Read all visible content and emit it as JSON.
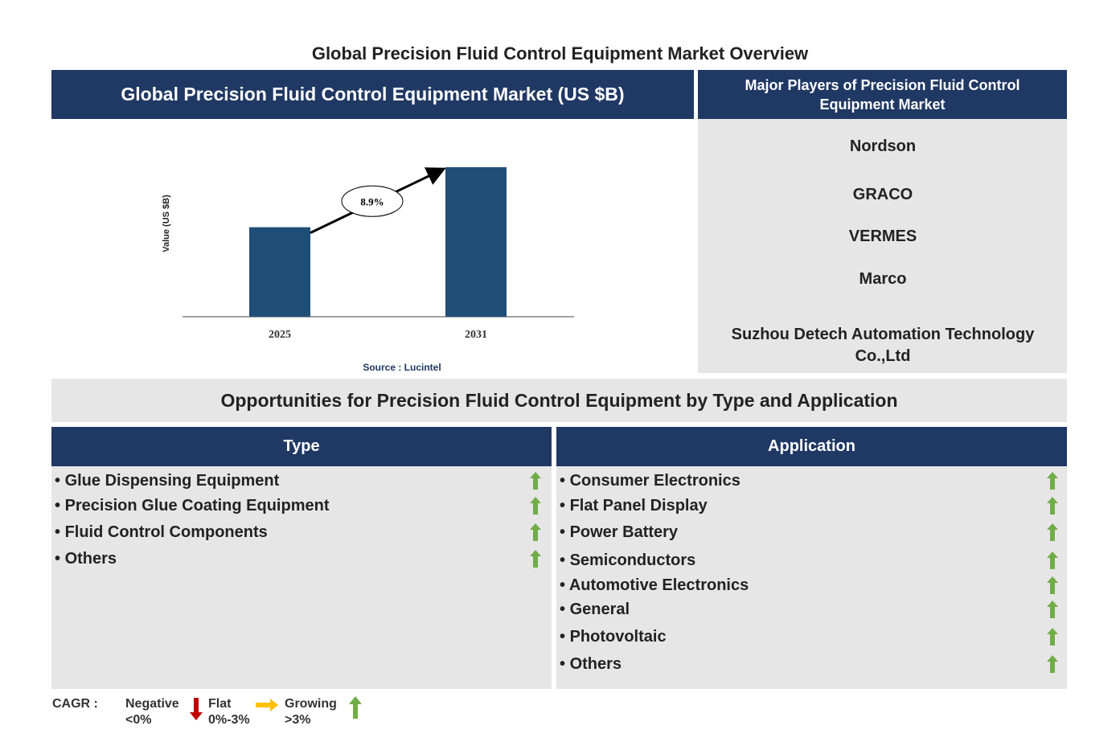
{
  "title": "Global Precision Fluid Control Equipment Market Overview",
  "chart_data": {
    "type": "bar",
    "title": "Global Precision Fluid Control Equipment Market (US $B)",
    "y_label": "Value (US $B)",
    "categories": [
      "2025",
      "2031"
    ],
    "values": [
      1.0,
      1.67
    ],
    "color": "#1f4e79",
    "annotation": "8.9%",
    "source": "Source : Lucintel"
  },
  "players": {
    "title": "Major Players of Precision Fluid Control Equipment Market",
    "items": [
      "Nordson",
      "GRACO",
      "VERMES",
      "Marco",
      "Suzhou Detech Automation Technology Co.,Ltd"
    ]
  },
  "opportunities": {
    "title": "Opportunities for Precision Fluid Control Equipment by Type and Application",
    "type": {
      "header": "Type",
      "items": [
        "Glue Dispensing Equipment",
        "Precision Glue Coating Equipment",
        "Fluid Control Components",
        "Others"
      ]
    },
    "application": {
      "header": "Application",
      "items": [
        "Consumer Electronics",
        "Flat Panel Display",
        "Power Battery",
        "Semiconductors",
        "Automotive Electronics",
        "General",
        "Photovoltaic",
        "Others"
      ]
    }
  },
  "legend": {
    "label": "CAGR :",
    "negative": [
      "Negative",
      "<0%"
    ],
    "flat": [
      "Flat",
      "0%-3%"
    ],
    "growing": [
      "Growing",
      ">3%"
    ]
  }
}
